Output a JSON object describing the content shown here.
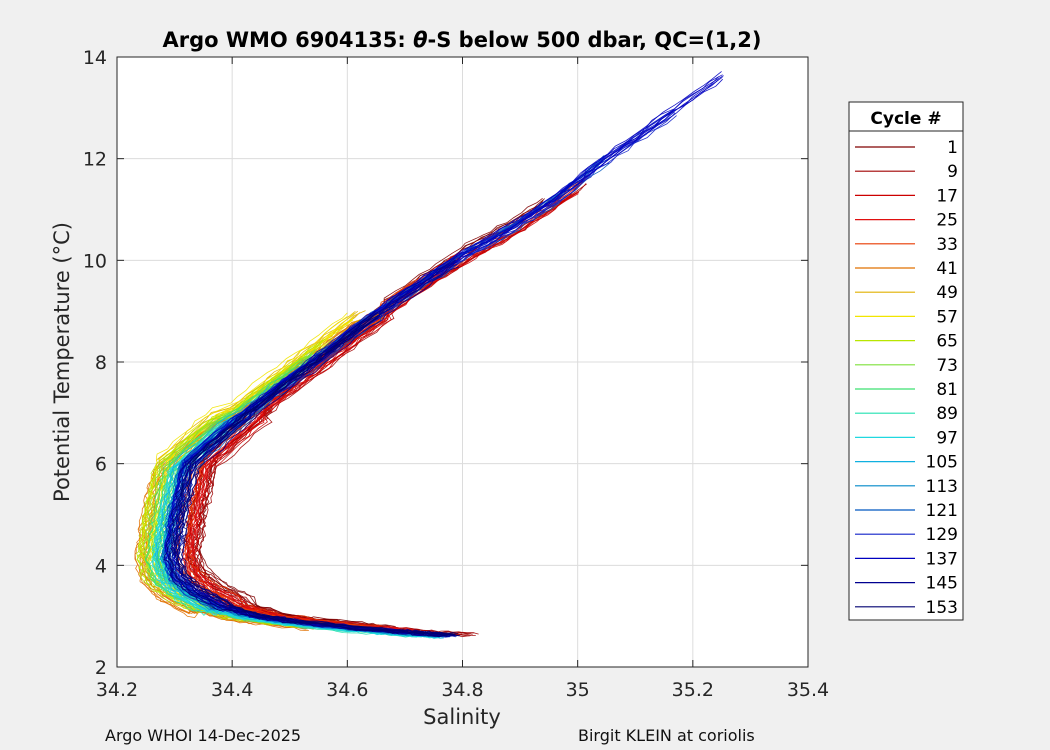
{
  "chart_data": {
    "type": "line",
    "title_prefix": "Argo WMO 6904135: ",
    "title_theta": "θ",
    "title_suffix": "-S below 500 dbar,  QC=(1,2)",
    "xlabel": "Salinity",
    "ylabel": "Potential Temperature (°C)",
    "xlim": [
      34.2,
      35.4
    ],
    "ylim": [
      2,
      14
    ],
    "xticks": [
      34.2,
      34.4,
      34.6,
      34.8,
      35,
      35.2,
      35.4
    ],
    "xtick_labels": [
      "34.2",
      "34.4",
      "34.6",
      "34.8",
      "35",
      "35.2",
      "35.4"
    ],
    "yticks": [
      2,
      4,
      6,
      8,
      10,
      12,
      14
    ],
    "ytick_labels": [
      "2",
      "4",
      "6",
      "8",
      "10",
      "12",
      "14"
    ],
    "grid": true,
    "legend_title": "Cycle #",
    "legend_placement": "outside-right",
    "legend_entries": [
      {
        "label": "1",
        "color": "#800000"
      },
      {
        "label": "9",
        "color": "#a00000"
      },
      {
        "label": "17",
        "color": "#cc0000"
      },
      {
        "label": "25",
        "color": "#e01010"
      },
      {
        "label": "33",
        "color": "#e83a00"
      },
      {
        "label": "41",
        "color": "#e07000"
      },
      {
        "label": "49",
        "color": "#e0b000"
      },
      {
        "label": "57",
        "color": "#f2e600"
      },
      {
        "label": "65",
        "color": "#b8e600"
      },
      {
        "label": "73",
        "color": "#7ee03a"
      },
      {
        "label": "81",
        "color": "#3ce070"
      },
      {
        "label": "89",
        "color": "#20e0b0"
      },
      {
        "label": "97",
        "color": "#20d8e0"
      },
      {
        "label": "105",
        "color": "#10b0e0"
      },
      {
        "label": "113",
        "color": "#0088c8"
      },
      {
        "label": "121",
        "color": "#0058c0"
      },
      {
        "label": "129",
        "color": "#1020c8"
      },
      {
        "label": "137",
        "color": "#0000c0"
      },
      {
        "label": "145",
        "color": "#000090"
      },
      {
        "label": "153",
        "color": "#000070"
      }
    ],
    "profile_shape": {
      "salinity": [
        34.32,
        34.31,
        34.3,
        34.295,
        34.29,
        34.3,
        34.33,
        34.38,
        34.44,
        34.5,
        34.6,
        34.68,
        34.73,
        34.78
      ],
      "theta": [
        6.0,
        5.5,
        5.0,
        4.6,
        4.2,
        3.8,
        3.5,
        3.2,
        3.0,
        2.9,
        2.78,
        2.7,
        2.66,
        2.62
      ]
    },
    "upper_trunk": {
      "salinity": [
        34.32,
        34.4,
        34.48,
        34.55,
        34.63,
        34.72,
        34.8,
        34.88,
        34.96,
        35.05,
        35.15,
        35.25
      ],
      "theta": [
        6.0,
        6.8,
        7.5,
        8.1,
        8.8,
        9.5,
        10.1,
        10.6,
        11.2,
        12.0,
        12.8,
        13.6
      ]
    },
    "series": [
      {
        "name": "1",
        "color": "#800000",
        "s_shift": 0.045,
        "t_shift": 0.15,
        "lo": 2.75,
        "hi": 11.0
      },
      {
        "name": "9",
        "color": "#a00000",
        "s_shift": 0.04,
        "t_shift": 0.0,
        "lo": 2.6,
        "hi": 11.6
      },
      {
        "name": "17",
        "color": "#cc0000",
        "s_shift": 0.035,
        "t_shift": -0.1,
        "lo": 2.65,
        "hi": 11.5
      },
      {
        "name": "25",
        "color": "#e01010",
        "s_shift": 0.03,
        "t_shift": 0.05,
        "lo": 2.7,
        "hi": 10.0
      },
      {
        "name": "33",
        "color": "#e83a00",
        "s_shift": 0.02,
        "t_shift": 0.1,
        "lo": 2.75,
        "hi": 9.5
      },
      {
        "name": "41",
        "color": "#e07000",
        "s_shift": -0.05,
        "t_shift": -0.15,
        "lo": 2.8,
        "hi": 9.3
      },
      {
        "name": "49",
        "color": "#e0b000",
        "s_shift": -0.04,
        "t_shift": 0.0,
        "lo": 2.8,
        "hi": 9.0
      },
      {
        "name": "57",
        "color": "#f2e600",
        "s_shift": -0.035,
        "t_shift": 0.1,
        "lo": 2.85,
        "hi": 8.9
      },
      {
        "name": "65",
        "color": "#b8e600",
        "s_shift": -0.04,
        "t_shift": -0.05,
        "lo": 2.8,
        "hi": 8.5
      },
      {
        "name": "73",
        "color": "#7ee03a",
        "s_shift": -0.03,
        "t_shift": 0.0,
        "lo": 2.75,
        "hi": 8.3
      },
      {
        "name": "81",
        "color": "#3ce070",
        "s_shift": -0.025,
        "t_shift": -0.05,
        "lo": 2.7,
        "hi": 8.2
      },
      {
        "name": "89",
        "color": "#20e0b0",
        "s_shift": -0.02,
        "t_shift": -0.1,
        "lo": 2.65,
        "hi": 8.0
      },
      {
        "name": "97",
        "color": "#20d8e0",
        "s_shift": -0.015,
        "t_shift": -0.12,
        "lo": 2.6,
        "hi": 7.8
      },
      {
        "name": "105",
        "color": "#10b0e0",
        "s_shift": -0.01,
        "t_shift": -0.08,
        "lo": 2.6,
        "hi": 7.5
      },
      {
        "name": "113",
        "color": "#0088c8",
        "s_shift": -0.005,
        "t_shift": -0.05,
        "lo": 2.58,
        "hi": 7.2
      },
      {
        "name": "121",
        "color": "#0058c0",
        "s_shift": 0.0,
        "t_shift": -0.02,
        "lo": 2.57,
        "hi": 12.0
      },
      {
        "name": "129",
        "color": "#1020c8",
        "s_shift": 0.005,
        "t_shift": 0.0,
        "lo": 2.56,
        "hi": 13.0
      },
      {
        "name": "137",
        "color": "#0000c0",
        "s_shift": 0.0,
        "t_shift": 0.02,
        "lo": 2.55,
        "hi": 13.6
      },
      {
        "name": "145",
        "color": "#000090",
        "s_shift": 0.008,
        "t_shift": -0.02,
        "lo": 2.56,
        "hi": 10.0
      },
      {
        "name": "153",
        "color": "#000070",
        "s_shift": 0.01,
        "t_shift": 0.0,
        "lo": 2.55,
        "hi": 9.0
      }
    ]
  },
  "footer": {
    "left": "Argo WHOI 14-Dec-2025",
    "right": "Birgit KLEIN at coriolis"
  }
}
